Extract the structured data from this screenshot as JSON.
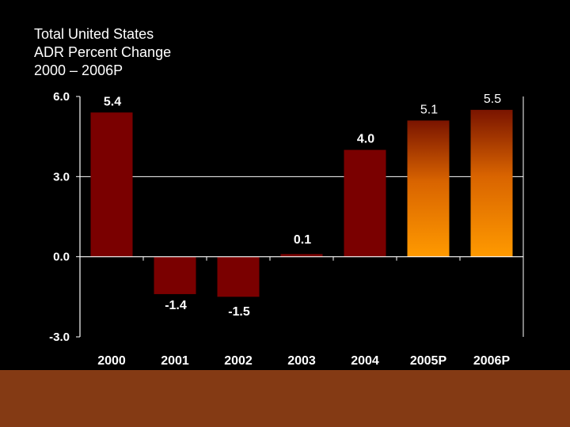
{
  "chart_data": {
    "type": "bar",
    "title_lines": [
      "Total United States",
      "ADR Percent Change",
      "2000 – 2006P"
    ],
    "categories": [
      "2000",
      "2001",
      "2002",
      "2003",
      "2004",
      "2005P",
      "2006P"
    ],
    "values": [
      5.4,
      -1.4,
      -1.5,
      0.1,
      4.0,
      5.1,
      5.5
    ],
    "value_labels": [
      "5.4",
      "-1.4",
      "-1.5",
      "0.1",
      "4.0",
      "5.1",
      "5.5"
    ],
    "projected": [
      false,
      false,
      false,
      false,
      false,
      true,
      true
    ],
    "ylim": [
      -3.0,
      6.0
    ],
    "yticks": [
      6.0,
      3.0,
      0.0,
      -3.0
    ],
    "ytick_labels": [
      "6.0",
      "3.0",
      "0.0",
      "-3.0"
    ],
    "gridlines": [
      3.0
    ],
    "xlabel": "",
    "ylabel": ""
  },
  "colors": {
    "background": "#000000",
    "bar_actual": "#7a0000",
    "bar_projected_top": "#7a1400",
    "bar_projected_bottom": "#ff9a00",
    "axis": "#ffffff",
    "text": "#ffffff",
    "footer_band": "#843a14"
  }
}
